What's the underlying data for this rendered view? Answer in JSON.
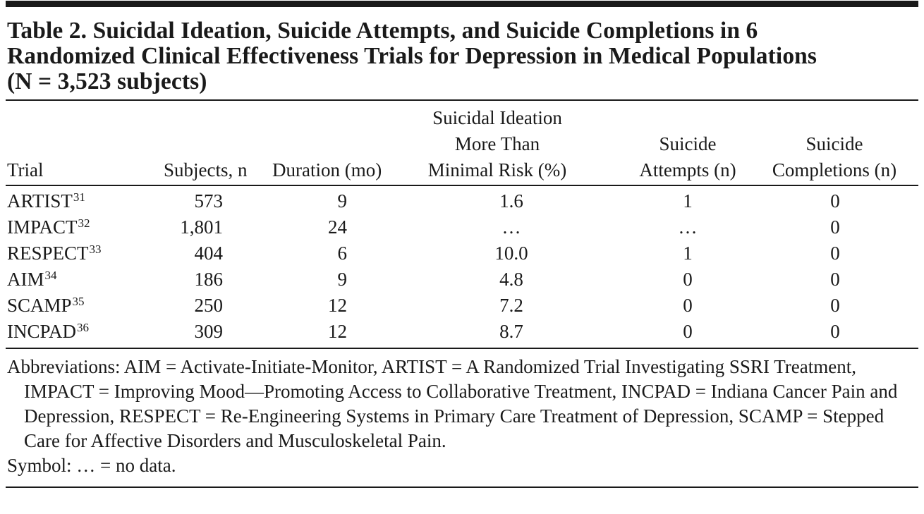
{
  "table": {
    "title_lines": [
      "Table 2. Suicidal Ideation, Suicide Attempts, and Suicide Completions in 6",
      "Randomized Clinical Effectiveness Trials  for Depression in Medical Populations",
      "(N = 3,523 subjects)"
    ],
    "headers": {
      "trial": "Trial",
      "subjects": "Subjects, n",
      "duration": "Duration (mo)",
      "ideation": [
        "Suicidal Ideation",
        "More Than",
        "Minimal Risk (%)"
      ],
      "attempts": [
        "Suicide",
        "Attempts (n)"
      ],
      "completions": [
        "Suicide",
        "Completions (n)"
      ]
    },
    "rows": [
      {
        "trial": "ARTIST",
        "ref": "31",
        "subjects": "573",
        "duration": "9",
        "ideation": "1.6",
        "attempts": "1",
        "completions": "0"
      },
      {
        "trial": "IMPACT",
        "ref": "32",
        "subjects": "1,801",
        "duration": "24",
        "ideation": "…",
        "attempts": "…",
        "completions": "0"
      },
      {
        "trial": "RESPECT",
        "ref": "33",
        "subjects": "404",
        "duration": "6",
        "ideation": "10.0",
        "attempts": "1",
        "completions": "0"
      },
      {
        "trial": "AIM",
        "ref": "34",
        "subjects": "186",
        "duration": "9",
        "ideation": "4.8",
        "attempts": "0",
        "completions": "0"
      },
      {
        "trial": "SCAMP",
        "ref": "35",
        "subjects": "250",
        "duration": "12",
        "ideation": "7.2",
        "attempts": "0",
        "completions": "0"
      },
      {
        "trial": "INCPAD",
        "ref": "36",
        "subjects": "309",
        "duration": "12",
        "ideation": "8.7",
        "attempts": "0",
        "completions": "0"
      }
    ],
    "abbreviations": "Abbreviations: AIM = Activate-Initiate-Monitor, ARTIST = A Randomized Trial Investigating SSRI Treatment, IMPACT = Improving Mood—Promoting Access to Collaborative Treatment, INCPAD = Indiana Cancer Pain and Depression, RESPECT = Re-Engineering Systems in Primary Care Treatment of Depression, SCAMP = Stepped Care for Affective Disorders and Musculoskeletal Pain.",
    "symbol_note": "Symbol: … = no data."
  }
}
